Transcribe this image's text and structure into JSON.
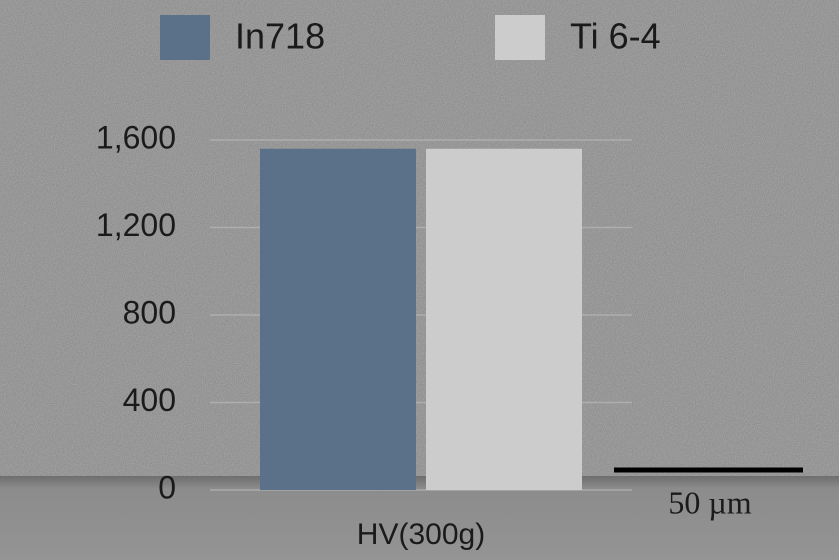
{
  "chart_data": {
    "type": "bar",
    "categories": [
      "HV(300g)"
    ],
    "series": [
      {
        "name": "In718",
        "color": "#5b7089",
        "values": [
          1560
        ]
      },
      {
        "name": "Ti 6-4",
        "color": "#cccccc",
        "values": [
          1560
        ]
      }
    ],
    "ylim": [
      0,
      1600
    ],
    "yticks": [
      0,
      400,
      800,
      {
        "value": 1200,
        "label": "1,200"
      },
      {
        "value": 1600,
        "label": "1,600"
      }
    ],
    "grid": true,
    "legend": "top",
    "annotations": [
      "50 µm"
    ]
  }
}
